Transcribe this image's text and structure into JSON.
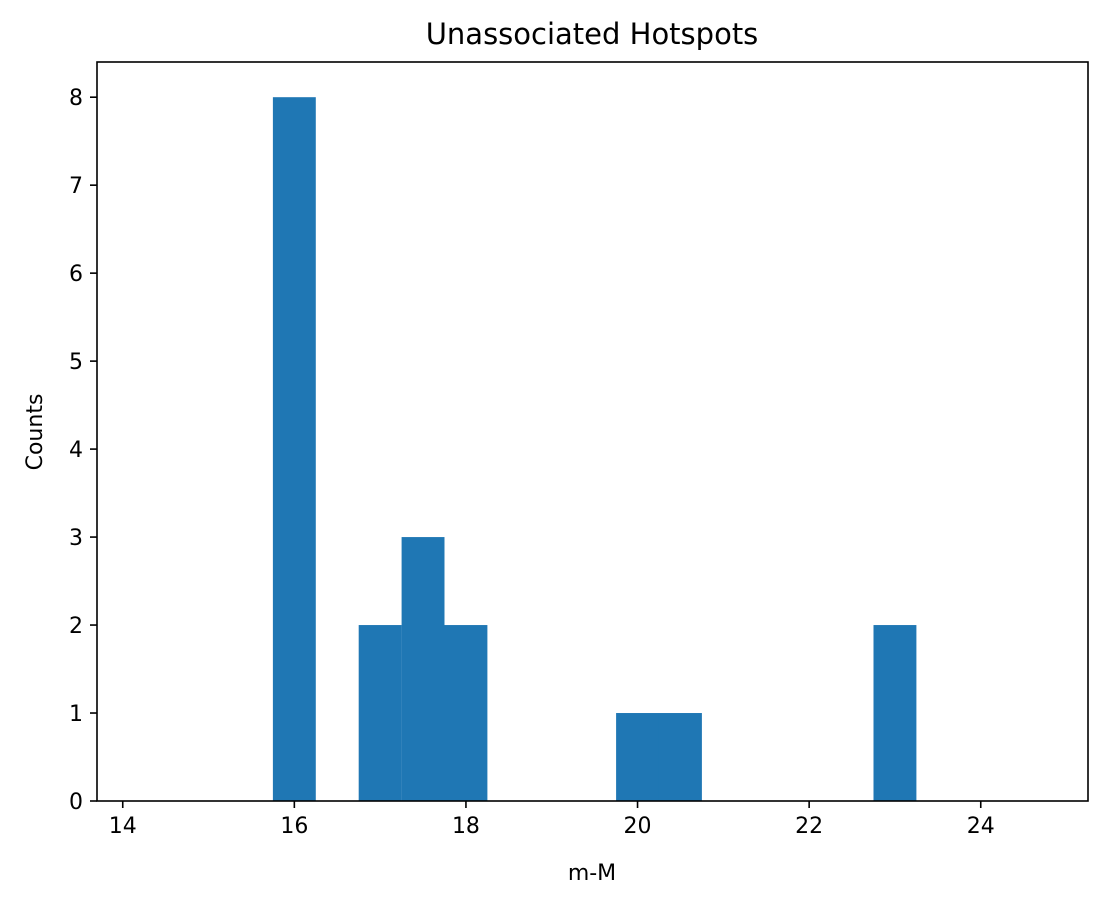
{
  "chart_data": {
    "type": "bar",
    "title": "Unassociated Hotspots",
    "xlabel": "m-M",
    "ylabel": "Counts",
    "xlim": [
      13.7,
      25.25
    ],
    "ylim": [
      0,
      8.4
    ],
    "x_ticks": [
      14,
      16,
      18,
      20,
      22,
      24
    ],
    "y_ticks": [
      0,
      1,
      2,
      3,
      4,
      5,
      6,
      7,
      8
    ],
    "grid": false,
    "legend": "none",
    "bar_color": "#1f77b4",
    "bins": [
      {
        "x0": 15.75,
        "x1": 16.25,
        "value": 8
      },
      {
        "x0": 16.75,
        "x1": 17.25,
        "value": 2
      },
      {
        "x0": 17.25,
        "x1": 17.75,
        "value": 3
      },
      {
        "x0": 17.75,
        "x1": 18.25,
        "value": 2
      },
      {
        "x0": 19.75,
        "x1": 20.25,
        "value": 1
      },
      {
        "x0": 20.25,
        "x1": 20.75,
        "value": 1
      },
      {
        "x0": 22.75,
        "x1": 23.25,
        "value": 2
      }
    ]
  }
}
